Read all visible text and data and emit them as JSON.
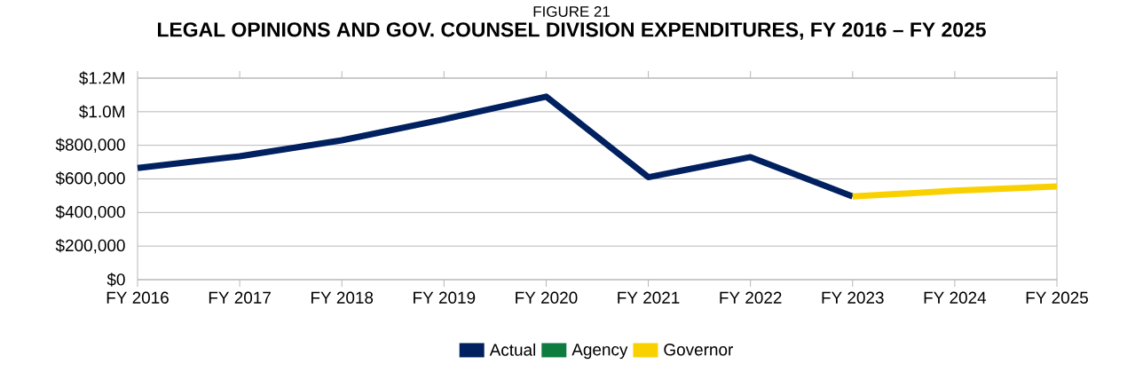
{
  "chart_data": {
    "type": "line",
    "title": "LEGAL OPINIONS AND GOV. COUNSEL DIVISION EXPENDITURES, FY 2016 – FY 2025",
    "subtitle": "FIGURE 21",
    "categories": [
      "FY 2016",
      "FY 2017",
      "FY 2018",
      "FY 2019",
      "FY 2020",
      "FY 2021",
      "FY 2022",
      "FY 2023",
      "FY 2024",
      "FY 2025"
    ],
    "series": [
      {
        "name": "Actual",
        "color": "#002060",
        "values": [
          665000,
          735000,
          830000,
          955000,
          1090000,
          610000,
          730000,
          495000,
          null,
          null
        ]
      },
      {
        "name": "Agency",
        "color": "#0e7c3f",
        "values": [
          null,
          null,
          null,
          null,
          null,
          null,
          null,
          null,
          null,
          null
        ]
      },
      {
        "name": "Governor",
        "color": "#f9d100",
        "values": [
          null,
          null,
          null,
          null,
          null,
          null,
          null,
          495000,
          530000,
          555000
        ]
      }
    ],
    "ylim": [
      0,
      1200000
    ],
    "yticks": [
      {
        "value": 0,
        "label": "$0"
      },
      {
        "value": 200000,
        "label": "$200,000"
      },
      {
        "value": 400000,
        "label": "$400,000"
      },
      {
        "value": 600000,
        "label": "$600,000"
      },
      {
        "value": 800000,
        "label": "$800,000"
      },
      {
        "value": 1000000,
        "label": "$1.0M"
      },
      {
        "value": 1200000,
        "label": "$1.2M"
      }
    ],
    "grid": "y",
    "legend": "bottom",
    "marker": "none",
    "line_style": "solid"
  }
}
